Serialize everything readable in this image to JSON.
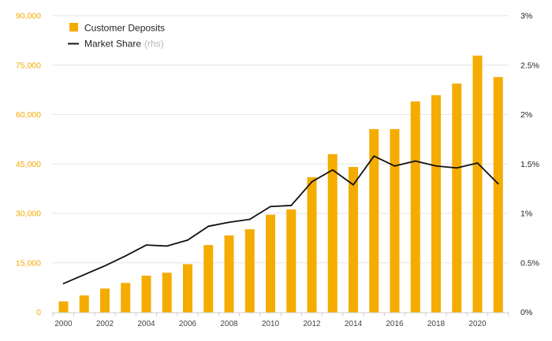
{
  "chart_data": {
    "type": "bar",
    "title": "",
    "xlabel": "",
    "ylabel": "",
    "x": [
      2000,
      2001,
      2002,
      2003,
      2004,
      2005,
      2006,
      2007,
      2008,
      2009,
      2010,
      2011,
      2012,
      2013,
      2014,
      2015,
      2016,
      2017,
      2018,
      2019,
      2020,
      2021
    ],
    "x_tick_labels": [
      "2000",
      "2002",
      "2004",
      "2006",
      "2008",
      "2010",
      "2012",
      "2014",
      "2016",
      "2018",
      "2020"
    ],
    "ylim": [
      0,
      90000
    ],
    "y_tick_labels": [
      "0",
      "15,000",
      "30,000",
      "45,000",
      "60,000",
      "75,000",
      "90,000"
    ],
    "y2lim": [
      0,
      3
    ],
    "y2_tick_labels": [
      "0%",
      "0.5%",
      "1%",
      "1.5%",
      "2%",
      "2.5%",
      "3%"
    ],
    "grid": true,
    "legend_position": "top-left",
    "series": [
      {
        "name": "Customer Deposits",
        "type": "bar",
        "axis": "left",
        "color": "#f5ac00",
        "values": [
          3300,
          5100,
          7200,
          8900,
          11100,
          12000,
          14600,
          20400,
          23300,
          25200,
          29600,
          31200,
          41000,
          48000,
          44100,
          55600,
          55600,
          64000,
          65900,
          69400,
          77900,
          71400
        ]
      },
      {
        "name": "Market Share",
        "name_suffix": "(rhs)",
        "type": "line",
        "axis": "right",
        "color": "#111111",
        "unit": "%",
        "values": [
          0.29,
          0.38,
          0.47,
          0.57,
          0.68,
          0.67,
          0.73,
          0.87,
          0.91,
          0.94,
          1.07,
          1.08,
          1.32,
          1.44,
          1.29,
          1.58,
          1.48,
          1.53,
          1.48,
          1.46,
          1.51,
          1.3
        ]
      }
    ]
  }
}
